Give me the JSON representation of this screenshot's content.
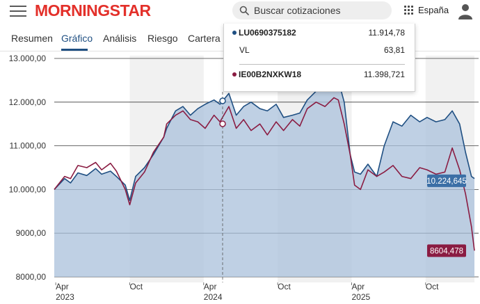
{
  "header": {
    "logo_text": "MORNINGSTAR",
    "search_placeholder": "Buscar cotizaciones",
    "region_label": "España"
  },
  "tabs": [
    {
      "label": "Resumen",
      "active": false
    },
    {
      "label": "Gráfico",
      "active": true
    },
    {
      "label": "Análisis",
      "active": false
    },
    {
      "label": "Riesgo",
      "active": false
    },
    {
      "label": "Cartera",
      "active": false
    }
  ],
  "tooltip": {
    "series_a_name": "LU0690375182",
    "series_a_value": "11.914,78",
    "vl_label": "VL",
    "vl_value": "63,81",
    "series_b_name": "IE00B2NXKW18",
    "series_b_value": "11.398,721"
  },
  "colors": {
    "brand": "#e3302a",
    "accent": "#1f4f82",
    "series_a": "#1f4f82",
    "series_b": "#8a1c42",
    "area_fill": "#a9c0db"
  },
  "chart_data": {
    "type": "line",
    "ylim": [
      8000,
      13000
    ],
    "y_ticks": [
      8000,
      9000,
      10000,
      11000,
      12000,
      13000
    ],
    "y_tick_labels": [
      "8000,00",
      "9000,00",
      "10.000,00",
      "11.000,00",
      "12.000,00",
      "13.000,00"
    ],
    "x_ticks": [
      {
        "t": 2023.25,
        "label": "Apr",
        "year": "2023"
      },
      {
        "t": 2023.75,
        "label": "Oct",
        "year": ""
      },
      {
        "t": 2024.25,
        "label": "Apr",
        "year": "2024"
      },
      {
        "t": 2024.75,
        "label": "Oct",
        "year": ""
      },
      {
        "t": 2025.25,
        "label": "Apr",
        "year": "2025"
      },
      {
        "t": 2025.75,
        "label": "Oct",
        "year": ""
      }
    ],
    "end_labels": {
      "series_a": "10.224,645",
      "series_b": "8604,478"
    },
    "series": [
      {
        "name": "LU0690375182",
        "color": "#1f4f82",
        "t": [
          2023.24,
          2023.31,
          2023.35,
          2023.4,
          2023.46,
          2023.52,
          2023.56,
          2023.62,
          2023.66,
          2023.72,
          2023.75,
          2023.79,
          2023.85,
          2023.91,
          2023.98,
          2024.0,
          2024.06,
          2024.11,
          2024.16,
          2024.21,
          2024.26,
          2024.32,
          2024.36,
          2024.42,
          2024.47,
          2024.52,
          2024.57,
          2024.63,
          2024.68,
          2024.74,
          2024.79,
          2024.85,
          2024.9,
          2024.95,
          2025.01,
          2025.07,
          2025.13,
          2025.16,
          2025.2,
          2025.24,
          2025.27,
          2025.31,
          2025.36,
          2025.42,
          2025.47,
          2025.53,
          2025.59,
          2025.65,
          2025.71,
          2025.76,
          2025.82,
          2025.88,
          2025.93,
          2025.98,
          2026.02,
          2026.06,
          2026.08
        ],
        "values": [
          10000,
          10250,
          10150,
          10380,
          10320,
          10480,
          10350,
          10420,
          10300,
          10100,
          9750,
          10300,
          10500,
          10800,
          11200,
          11400,
          11800,
          11900,
          11700,
          11850,
          11950,
          12050,
          11950,
          12200,
          11700,
          11900,
          12000,
          11850,
          11800,
          11950,
          11650,
          11700,
          11750,
          12050,
          12250,
          12400,
          12700,
          12500,
          12000,
          10800,
          10400,
          10350,
          10580,
          10300,
          11000,
          11550,
          11450,
          11700,
          11550,
          11650,
          11550,
          11600,
          11800,
          11500,
          10850,
          10300,
          10250
        ]
      },
      {
        "name": "IE00B2NXKW18",
        "color": "#8a1c42",
        "t": [
          2023.24,
          2023.31,
          2023.35,
          2023.4,
          2023.46,
          2023.52,
          2023.56,
          2023.62,
          2023.66,
          2023.72,
          2023.75,
          2023.79,
          2023.85,
          2023.91,
          2023.98,
          2024.0,
          2024.06,
          2024.11,
          2024.16,
          2024.21,
          2024.26,
          2024.32,
          2024.36,
          2024.42,
          2024.47,
          2024.52,
          2024.57,
          2024.63,
          2024.68,
          2024.74,
          2024.79,
          2024.85,
          2024.9,
          2024.95,
          2025.01,
          2025.07,
          2025.13,
          2025.16,
          2025.2,
          2025.24,
          2025.27,
          2025.31,
          2025.36,
          2025.42,
          2025.47,
          2025.53,
          2025.59,
          2025.65,
          2025.71,
          2025.76,
          2025.82,
          2025.88,
          2025.93,
          2025.98,
          2026.02,
          2026.06,
          2026.08
        ],
        "values": [
          10000,
          10300,
          10250,
          10550,
          10500,
          10620,
          10450,
          10600,
          10420,
          10000,
          9650,
          10150,
          10400,
          10850,
          11200,
          11500,
          11700,
          11800,
          11600,
          11550,
          11400,
          11700,
          11550,
          11900,
          11400,
          11600,
          11350,
          11500,
          11250,
          11550,
          11350,
          11600,
          11450,
          11850,
          12000,
          11900,
          12100,
          12050,
          11500,
          10800,
          10100,
          10000,
          10450,
          10300,
          10400,
          10550,
          10300,
          10250,
          10500,
          10450,
          10350,
          10400,
          10950,
          10450,
          9900,
          9150,
          8600
        ]
      }
    ]
  }
}
